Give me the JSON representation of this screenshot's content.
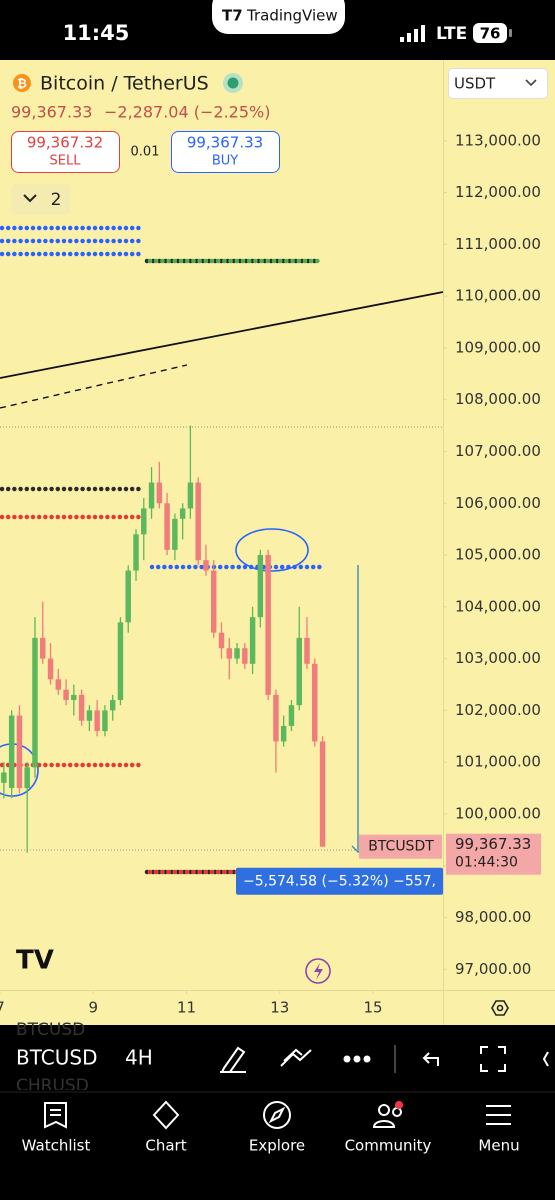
{
  "status_bar": {
    "time": "11:45",
    "app": "TradingView",
    "network": "LTE",
    "battery": "76"
  },
  "header": {
    "symbol": "Bitcoin / TetherUS",
    "last_price": "99,367.33",
    "change": "−2,287.04 (−2.25%)",
    "sell_price": "99,367.32",
    "sell_label": "SELL",
    "spread": "0.01",
    "buy_price": "99,367.33",
    "buy_label": "BUY",
    "layers_count": "2"
  },
  "chart_data": {
    "type": "candlestick",
    "currency": "USDT",
    "x": [
      7.083,
      7.25,
      7.417,
      7.583,
      7.75,
      7.917,
      8.083,
      8.25,
      8.417,
      8.583,
      8.75,
      8.917,
      9.083,
      9.25,
      9.417,
      9.583,
      9.75,
      9.917,
      10.083,
      10.25,
      10.417,
      10.583,
      10.75,
      10.917,
      11.083,
      11.25,
      11.417,
      11.583,
      11.75,
      11.917,
      12.083,
      12.25,
      12.417,
      12.583,
      12.75,
      12.917,
      13.083,
      13.25,
      13.417,
      13.583,
      13.75,
      13.917
    ],
    "open": [
      100600,
      100500,
      101900,
      100500,
      100900,
      103400,
      103000,
      102600,
      102400,
      102200,
      102300,
      101800,
      102000,
      101600,
      102000,
      102200,
      103700,
      104700,
      105400,
      105900,
      106400,
      106000,
      105100,
      105700,
      105900,
      106400,
      104900,
      104700,
      103500,
      103200,
      103000,
      103200,
      102900,
      103800,
      105000,
      102300,
      101400,
      101700,
      102100,
      103400,
      102900,
      101400
    ],
    "high": [
      101000,
      102000,
      102100,
      101000,
      103800,
      104100,
      103300,
      102800,
      102600,
      102500,
      102400,
      102100,
      102200,
      102100,
      102300,
      103800,
      104800,
      105500,
      106100,
      106700,
      106800,
      106200,
      105800,
      106000,
      107500,
      106500,
      105200,
      104900,
      103700,
      103400,
      103300,
      103300,
      104000,
      105100,
      105100,
      102400,
      101900,
      102200,
      104000,
      103800,
      103000,
      101500
    ],
    "low": [
      100300,
      100300,
      100400,
      99250,
      100700,
      102900,
      102500,
      102300,
      102100,
      101900,
      101700,
      101600,
      101500,
      101500,
      101800,
      102100,
      103500,
      104500,
      104900,
      105700,
      105900,
      105000,
      104900,
      105300,
      105700,
      104800,
      104600,
      103400,
      103000,
      102600,
      102900,
      102800,
      102700,
      103600,
      102200,
      100800,
      101300,
      101600,
      102000,
      102800,
      101300,
      99367.33
    ],
    "close": [
      100800,
      101900,
      100500,
      100900,
      103400,
      103000,
      102600,
      102400,
      102200,
      102300,
      101800,
      102000,
      101600,
      102000,
      102200,
      103700,
      104700,
      105400,
      105900,
      106400,
      106000,
      105100,
      105700,
      105900,
      106400,
      104900,
      104700,
      103500,
      103200,
      103000,
      103200,
      102900,
      103800,
      105000,
      102300,
      101400,
      101700,
      102100,
      103400,
      102900,
      101400,
      99367.33
    ],
    "up_color": "#5cb85c",
    "down_color": "#f07c7c",
    "xlim": [
      7,
      16.5
    ],
    "xticks": [
      7,
      9,
      11,
      13,
      15
    ],
    "ylim": [
      96600,
      114560
    ],
    "yticks": [
      {
        "value": 97000,
        "label": "97,000.00"
      },
      {
        "value": 98000,
        "label": "98,000.00"
      },
      {
        "value": 99000,
        "label": "99,000.00"
      },
      {
        "value": 100000,
        "label": "100,000.00"
      },
      {
        "value": 101000,
        "label": "101,000.00"
      },
      {
        "value": 102000,
        "label": "102,000.00"
      },
      {
        "value": 103000,
        "label": "103,000.00"
      },
      {
        "value": 104000,
        "label": "104,000.00"
      },
      {
        "value": 105000,
        "label": "105,000.00"
      },
      {
        "value": 106000,
        "label": "106,000.00"
      },
      {
        "value": 107000,
        "label": "107,000.00"
      },
      {
        "value": 108000,
        "label": "108,000.00"
      },
      {
        "value": 109000,
        "label": "109,000.00"
      },
      {
        "value": 110000,
        "label": "110,000.00"
      },
      {
        "value": 111000,
        "label": "111,000.00"
      },
      {
        "value": 112000,
        "label": "112,000.00"
      },
      {
        "value": 113000,
        "label": "113,000.00"
      }
    ],
    "last_price_symbol": "BTCUSDT",
    "last_price_label": "99,367.33",
    "countdown": "01:44:30",
    "measure_label": "−5,574.58 (−5.32%) −557,"
  },
  "toolbar": {
    "symbol": "BTCUSD",
    "interval": "4H",
    "ghost_above": "BTCUSD",
    "ghost_below": "CHRUSD"
  },
  "nav": [
    "Watchlist",
    "Chart",
    "Explore",
    "Community",
    "Menu"
  ]
}
